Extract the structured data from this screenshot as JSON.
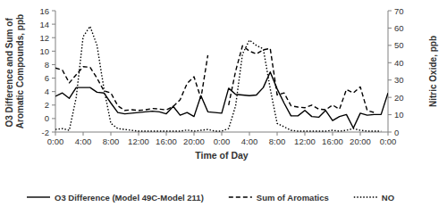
{
  "chart_data": {
    "type": "line",
    "x_label": "Time of Day",
    "y_label": "O3 Difference and Sum of Aromatic Compounds, ppb",
    "y2_label": "Nitric Oxide, ppb",
    "x": [
      0,
      1,
      2,
      3,
      4,
      5,
      6,
      7,
      8,
      9,
      10,
      11,
      12,
      13,
      14,
      15,
      16,
      17,
      18,
      19,
      20,
      21,
      22,
      23,
      24,
      25,
      26,
      27,
      28,
      29,
      30,
      31,
      32,
      33,
      34,
      35,
      36,
      37,
      38,
      39,
      40,
      41,
      42,
      43,
      44,
      45,
      46,
      47,
      48
    ],
    "xlim": [
      0,
      48
    ],
    "xticks": [
      {
        "value": 0,
        "label": "0:00"
      },
      {
        "value": 4,
        "label": "4:00"
      },
      {
        "value": 8,
        "label": "8:00"
      },
      {
        "value": 12,
        "label": "12:00"
      },
      {
        "value": 16,
        "label": "16:00"
      },
      {
        "value": 20,
        "label": "20:00"
      },
      {
        "value": 24,
        "label": "0:00"
      },
      {
        "value": 28,
        "label": "4:00"
      },
      {
        "value": 32,
        "label": "8:00"
      },
      {
        "value": 36,
        "label": "12:00"
      },
      {
        "value": 40,
        "label": "16:00"
      },
      {
        "value": 44,
        "label": "20:00"
      },
      {
        "value": 48,
        "label": "0:00"
      }
    ],
    "ylim": [
      -2,
      16
    ],
    "yticks": [
      -2,
      0,
      2,
      4,
      6,
      8,
      10,
      12,
      14,
      16
    ],
    "y2lim": [
      0,
      70
    ],
    "y2ticks": [
      0,
      10,
      20,
      30,
      40,
      50,
      60,
      70
    ],
    "grid": false,
    "legend": "bottom",
    "series": [
      {
        "name": "O3 Difference (Model 49C-Model 211)",
        "color": "#000000",
        "line_style": "solid",
        "values": [
          3.3,
          3.8,
          3.0,
          4.6,
          4.6,
          4.6,
          3.9,
          3.8,
          2.3,
          0.9,
          0.7,
          0.8,
          0.9,
          1.0,
          1.1,
          1.0,
          0.7,
          1.8,
          0.5,
          0.9,
          0.3,
          3.4,
          1.0,
          0.9,
          0.8,
          4.5,
          3.6,
          3.5,
          3.4,
          3.5,
          4.6,
          6.9,
          4.4,
          2.3,
          0.4,
          0.4,
          1.2,
          0.3,
          0.2,
          1.2,
          -0.3,
          0.3,
          0.6,
          -1.4,
          0.8,
          0.5,
          0.6,
          0.6,
          3.8
        ]
      },
      {
        "name": "Sum of Aromatics",
        "color": "#000000",
        "line_style": "dashed",
        "values": [
          7.5,
          7.2,
          5.3,
          6.5,
          7.7,
          7.6,
          6.0,
          4.1,
          3.8,
          1.9,
          1.2,
          1.3,
          1.2,
          1.3,
          1.5,
          1.4,
          1.3,
          1.8,
          2.8,
          5.2,
          6.2,
          3.0,
          9.4,
          null,
          null,
          2.0,
          7.0,
          10.8,
          10.0,
          9.6,
          10.2,
          10.4,
          3.5,
          3.8,
          1.9,
          1.7,
          1.6,
          2.0,
          1.4,
          1.3,
          2.0,
          1.4,
          4.3,
          3.8,
          4.7,
          1.2,
          0.9,
          null,
          null
        ]
      },
      {
        "name": "NO",
        "color": "#000000",
        "line_style": "dotted",
        "axis": "y2",
        "values": [
          1.5,
          2,
          1,
          20,
          55,
          61,
          50,
          25,
          5,
          2,
          1.5,
          1,
          0.5,
          0.5,
          0.5,
          0.5,
          0.5,
          0.5,
          0.5,
          1.2,
          0.5,
          1,
          1.5,
          0.5,
          0.5,
          2,
          15,
          45,
          53,
          50,
          48,
          25,
          5,
          3,
          1,
          0.5,
          0.5,
          0.5,
          0.5,
          0.5,
          1,
          0.5,
          1,
          2,
          1,
          0.5,
          0.5,
          0.5,
          null
        ]
      }
    ]
  }
}
